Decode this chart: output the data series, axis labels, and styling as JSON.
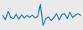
{
  "values": [
    0.2,
    -1.2,
    1.5,
    -0.4,
    -0.8,
    0.6,
    -1.0,
    0.4,
    -0.6,
    0.2,
    -0.4,
    0.3,
    -0.6,
    -0.2,
    3.8,
    -3.0,
    -0.8,
    -0.3,
    -1.5,
    -0.5,
    0.8,
    -1.2,
    0.5,
    0.8,
    -0.8,
    1.2,
    -0.5,
    0.3,
    0.8,
    0.2
  ],
  "line_color": "#1a78c2",
  "bg_color": "#eaeaea",
  "linewidth": 1.1
}
